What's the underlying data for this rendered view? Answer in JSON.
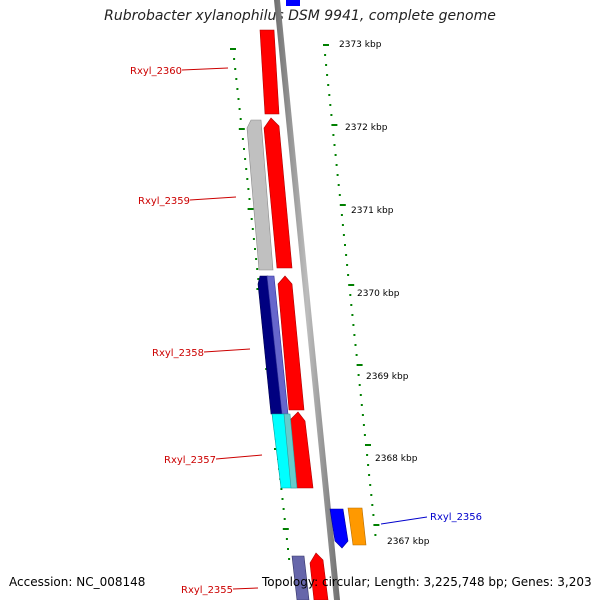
{
  "title": "Rubrobacter xylanophilus DSM 9941, complete genome",
  "footer": {
    "accession": "Accession: NC_008148",
    "topology": "Topology: circular; Length: 3,225,748 bp; Genes: 3,203"
  },
  "kbp_labels": [
    "2373 kbp",
    "2372 kbp",
    "2371 kbp",
    "2370 kbp",
    "2369 kbp",
    "2368 kbp",
    "2367 kbp"
  ],
  "gene_labels": [
    "Rxyl_2360",
    "Rxyl_2359",
    "Rxyl_2358",
    "Rxyl_2357",
    "Rxyl_2356",
    "Rxyl_2355"
  ],
  "colors": {
    "forward_gene": "#ff0000",
    "reverse_gray": "#c0c0c0",
    "reverse_navy": "#000080",
    "reverse_cyan": "#00ffff",
    "blue_gene": "#0000ff",
    "orange_gene": "#ff9900",
    "tick_green": "#008000",
    "label_red": "#cc0000",
    "label_blue": "#0000cc"
  }
}
